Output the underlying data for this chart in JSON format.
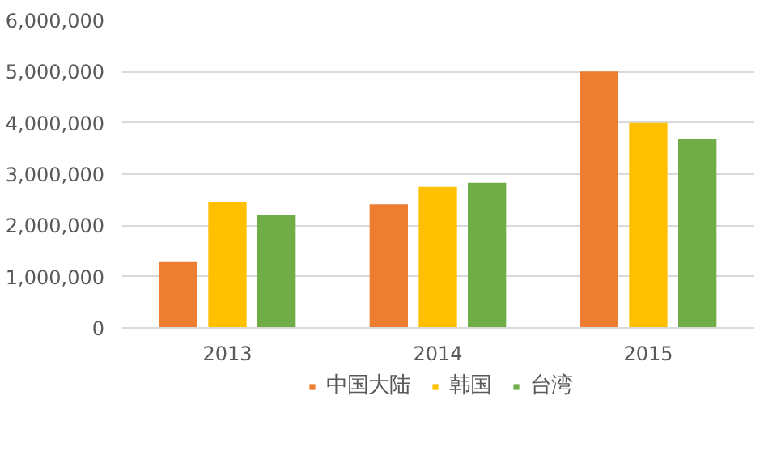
{
  "chart_data": {
    "type": "bar",
    "categories": [
      "2013",
      "2014",
      "2015"
    ],
    "series": [
      {
        "name": "中国大陆",
        "color": "#ed7d31",
        "values": [
          1300000,
          2410000,
          5000000
        ]
      },
      {
        "name": "韩国",
        "color": "#ffc000",
        "values": [
          2460000,
          2750000,
          4000000
        ]
      },
      {
        "name": "台湾",
        "color": "#70ad47",
        "values": [
          2210000,
          2830000,
          3680000
        ]
      }
    ],
    "ylim": [
      0,
      6000000
    ],
    "yticks": [
      {
        "value": 0,
        "label": "0"
      },
      {
        "value": 1000000,
        "label": "1,000,000"
      },
      {
        "value": 2000000,
        "label": "2,000,000"
      },
      {
        "value": 3000000,
        "label": "3,000,000"
      },
      {
        "value": 4000000,
        "label": "4,000,000"
      },
      {
        "value": 5000000,
        "label": "5,000,000"
      },
      {
        "value": 6000000,
        "label": "6,000,000"
      }
    ],
    "grid": "y",
    "legend": "bottom"
  }
}
